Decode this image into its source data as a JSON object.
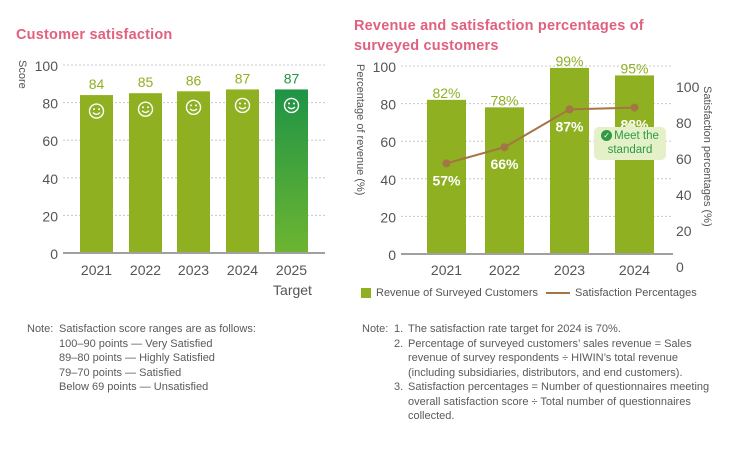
{
  "chart_data": [
    {
      "type": "bar",
      "title": "Customer satisfaction",
      "xlabel": "",
      "ylabel": "Score",
      "ylim": [
        0,
        100
      ],
      "yticks": [
        0,
        20,
        40,
        60,
        80,
        100
      ],
      "grid": true,
      "categories": [
        "2021",
        "2022",
        "2023",
        "2024",
        "2025"
      ],
      "category_sublabels": [
        "",
        "",
        "",
        "",
        "Target"
      ],
      "values": [
        84,
        85,
        86,
        87,
        87
      ],
      "data_labels": [
        "84",
        "85",
        "86",
        "87",
        "87"
      ],
      "bar_icon": "smiley-face-icon",
      "colors": [
        "#8fb021",
        "#8fb021",
        "#8fb021",
        "#8fb021",
        "target-gradient"
      ],
      "target_gradient": [
        "#1e9446",
        "#6db531"
      ]
    },
    {
      "type": "bar+line",
      "title": "Revenue and satisfaction percentages of surveyed customers",
      "xlabel": "",
      "ylabel": "Percentage of revenue (%)",
      "ylabel_right": "Satisfaction percentages (%)",
      "ylim": [
        0,
        100
      ],
      "ylim_right": [
        0,
        100
      ],
      "yticks": [
        0,
        20,
        40,
        60,
        80,
        100
      ],
      "yticks_right": [
        0,
        20,
        40,
        60,
        80,
        100
      ],
      "grid": true,
      "categories": [
        "2021",
        "2022",
        "2023",
        "2024"
      ],
      "series": [
        {
          "name": "Revenue of Surveyed Customers",
          "type": "bar",
          "axis": "left",
          "values": [
            82,
            78,
            99,
            95
          ],
          "labels": [
            "82%",
            "78%",
            "99%",
            "95%"
          ],
          "color": "#8fb021"
        },
        {
          "name": "Satisfaction Percentages",
          "type": "line",
          "axis": "right",
          "values": [
            57,
            66,
            87,
            88
          ],
          "labels": [
            "57%",
            "66%",
            "87%",
            "88%"
          ],
          "color": "#a47645"
        }
      ],
      "legend": "bottom",
      "annotation": {
        "text_line1": "Meet the",
        "text_line2": "standard",
        "category": "2024",
        "icon": "check-circle-icon"
      }
    }
  ],
  "notes_left": {
    "label": "Note:",
    "lines": [
      "Satisfaction score ranges are as follows:",
      "100–90 points — Very Satisfied",
      "89–80 points — Highly Satisfied",
      "79–70 points — Satisfied",
      "Below 69 points — Unsatisfied"
    ]
  },
  "notes_right": {
    "label": "Note:",
    "items": [
      {
        "num": "1.",
        "text": "The satisfaction rate target for 2024 is 70%."
      },
      {
        "num": "2.",
        "text": "Percentage of surveyed customers’ sales revenue = Sales revenue of survey respondents ÷ HIWIN’s total revenue (including subsidiaries, distributors, and end customers)."
      },
      {
        "num": "3.",
        "text": "Satisfaction percentages = Number of questionnaires meeting overall satisfaction score ÷ Total number of questionnaires collected."
      }
    ]
  },
  "colors": {
    "title": "#e0607e",
    "bar": "#8fb021",
    "line": "#a47645",
    "axis_text": "#555555",
    "badge_bg": "#e3f0c8",
    "badge_text": "#2f9a43"
  }
}
